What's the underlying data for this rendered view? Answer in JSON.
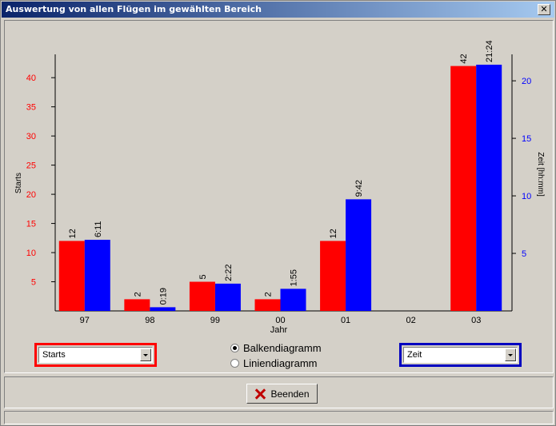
{
  "window": {
    "title": "Auswertung von allen Flügen im gewählten Bereich",
    "close_glyph": "✕"
  },
  "chart_data": {
    "type": "bar",
    "categories": [
      "97",
      "98",
      "99",
      "00",
      "01",
      "02",
      "03"
    ],
    "xlabel": "Jahr",
    "left_axis": {
      "label": "Starts",
      "ticks": [
        "5",
        "10",
        "15",
        "20",
        "25",
        "30",
        "35",
        "40"
      ],
      "ylim": [
        0,
        44
      ],
      "color": "#ff0000"
    },
    "right_axis": {
      "label": "Zeit [hh:mm]",
      "ticks": [
        "5",
        "10",
        "15",
        "20"
      ],
      "ylim": [
        0,
        22.3
      ],
      "color": "#0000ff"
    },
    "series": [
      {
        "name": "Starts",
        "axis": "left",
        "color": "#ff0000",
        "values": [
          12,
          2,
          5,
          2,
          12,
          0,
          42
        ],
        "labels": [
          "12",
          "2",
          "5",
          "2",
          "12",
          "",
          "42"
        ]
      },
      {
        "name": "Zeit",
        "axis": "right",
        "color": "#0000ff",
        "values": [
          6.18,
          0.32,
          2.37,
          1.92,
          9.7,
          0,
          21.4
        ],
        "labels": [
          "6:11",
          "0:19",
          "2:22",
          "1:55",
          "9:42",
          "",
          "21:24"
        ]
      }
    ]
  },
  "controls": {
    "left_combo": {
      "value": "Starts",
      "frame_color": "#ff0000"
    },
    "right_combo": {
      "value": "Zeit",
      "frame_color": "#0000c0"
    },
    "radio_options": [
      {
        "label": "Balkendiagramm",
        "checked": true
      },
      {
        "label": "Liniendiagramm",
        "checked": false
      }
    ],
    "close_button_label": "Beenden"
  }
}
